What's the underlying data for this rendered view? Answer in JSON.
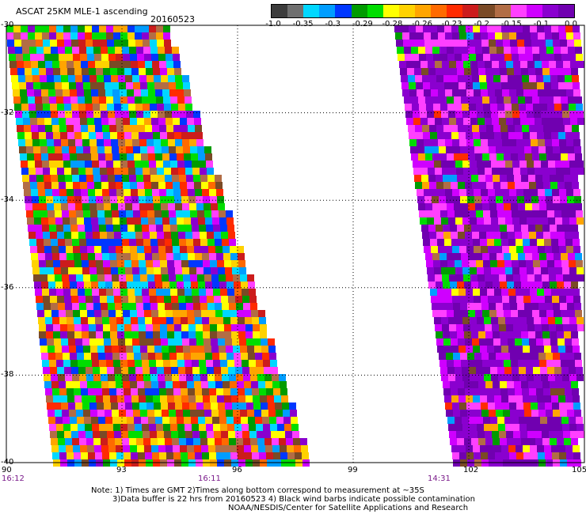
{
  "header": {
    "title": "ASCAT 25KM MLE-1 ascending",
    "date": "20160523"
  },
  "colorbar": {
    "colors": [
      "#3c3c3c",
      "#6f6f6f",
      "#00d7ff",
      "#009dff",
      "#0037ff",
      "#009b00",
      "#00dd00",
      "#ffff00",
      "#ffd200",
      "#ffa500",
      "#ff6a00",
      "#ff2b00",
      "#cc1c1c",
      "#7a4a26",
      "#b26d45",
      "#ff40ff",
      "#cf00ff",
      "#8a00cf",
      "#7000b0"
    ],
    "labels": [
      "-1.0",
      "-0.35",
      "-0.3",
      "-0.29",
      "-0.28",
      "-0.26",
      "-0.23",
      "-0.2",
      "-0.15",
      "-0.1",
      "0.0"
    ]
  },
  "chart_data": {
    "type": "heatmap",
    "x_ticks": [
      "90",
      "93",
      "96",
      "99",
      "102",
      "105"
    ],
    "y_ticks": [
      "-30",
      "-32",
      "-34",
      "-36",
      "-38",
      "-40"
    ],
    "xlim": [
      90,
      105
    ],
    "ylim": [
      -40,
      -30
    ],
    "swaths": [
      {
        "name": "16:12",
        "time": "16:12"
      },
      {
        "name": "16:11",
        "time": "16:11"
      },
      {
        "name": "14:31",
        "time": "14:31"
      }
    ]
  },
  "notes": {
    "line1": "Note: 1) Times are GMT 2)Times along bottom correspond to measurement at ~35S",
    "line2": "3)Data buffer is 22 hrs from 20160523 4) Black wind barbs indicate possible contamination",
    "line3": "NOAA/NESDIS/Center for Satellite Applications and Research"
  }
}
